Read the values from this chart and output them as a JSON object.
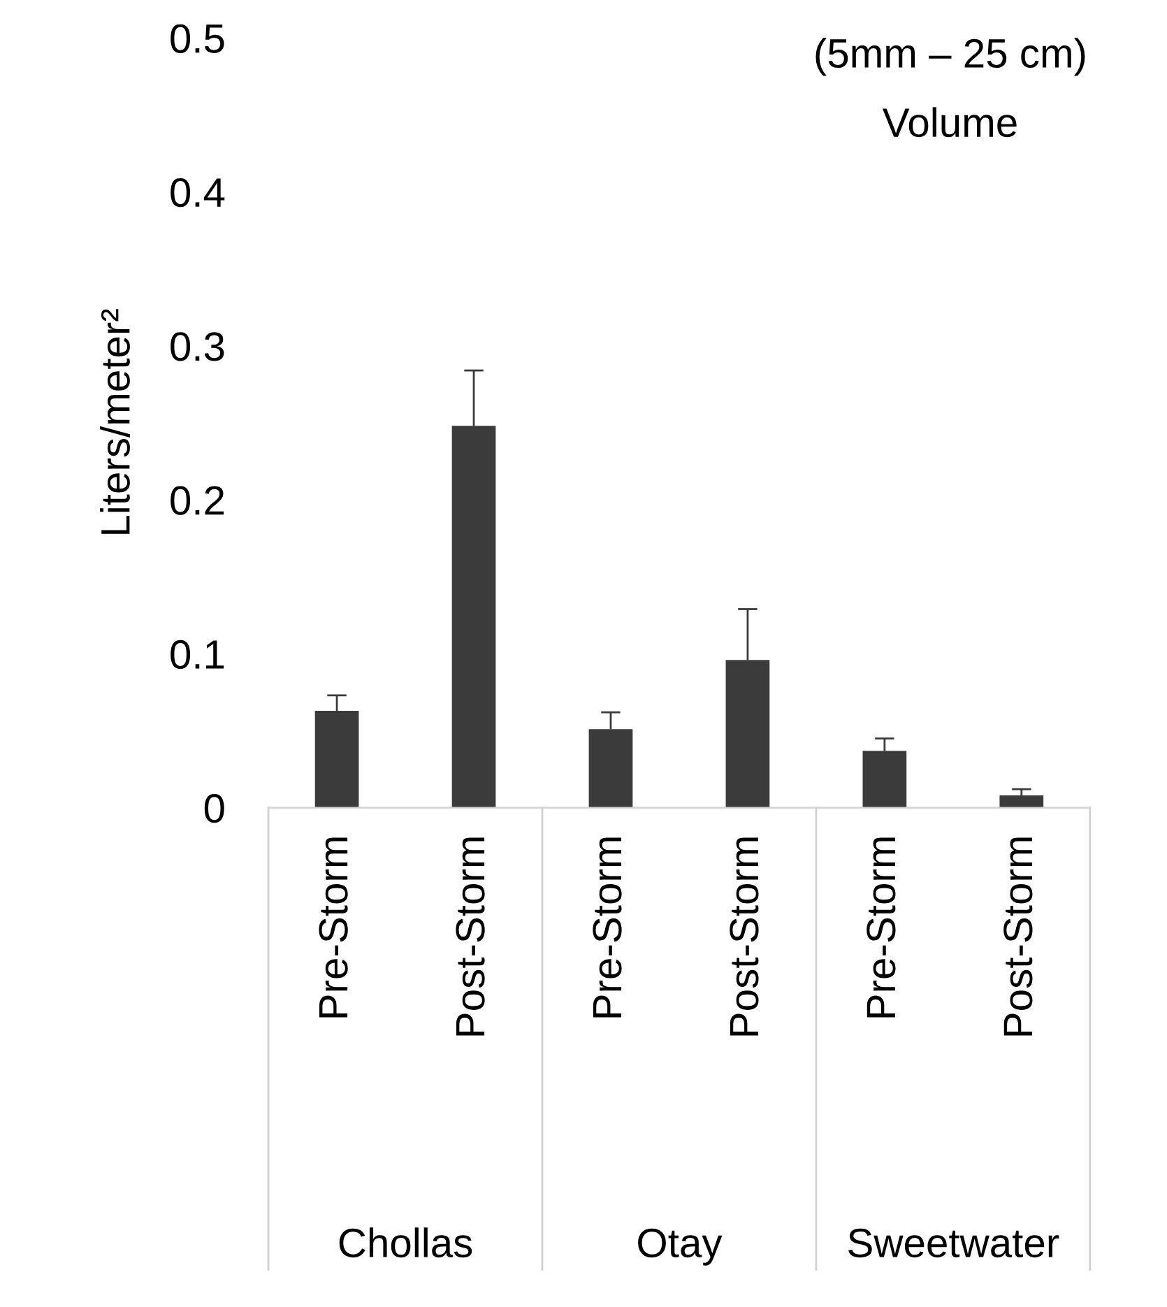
{
  "chart_data": {
    "type": "bar",
    "title": "(5mm – 25 cm)",
    "subtitle": "Volume",
    "ylabel": "Liters/meter²",
    "categories": [
      "Pre-Storm",
      "Post-Storm",
      "Pre-Storm",
      "Post-Storm",
      "Pre-Storm",
      "Post-Storm"
    ],
    "values": [
      0.063,
      0.248,
      0.051,
      0.096,
      0.037,
      0.008
    ],
    "errors": [
      [
        0.063,
        0.073
      ],
      [
        0.248,
        0.284
      ],
      [
        0.051,
        0.062
      ],
      [
        0.096,
        0.129
      ],
      [
        0.037,
        0.045
      ],
      [
        0.008,
        0.012
      ]
    ],
    "color": "#3b3b3b",
    "annotations": [
      "Chollas",
      "Otay",
      "Sweetwater"
    ],
    "ylim": [
      0,
      0.5
    ],
    "yticks": [
      0,
      0.1,
      0.2,
      0.3,
      0.4,
      0.5
    ],
    "grid": false,
    "legend": false
  }
}
